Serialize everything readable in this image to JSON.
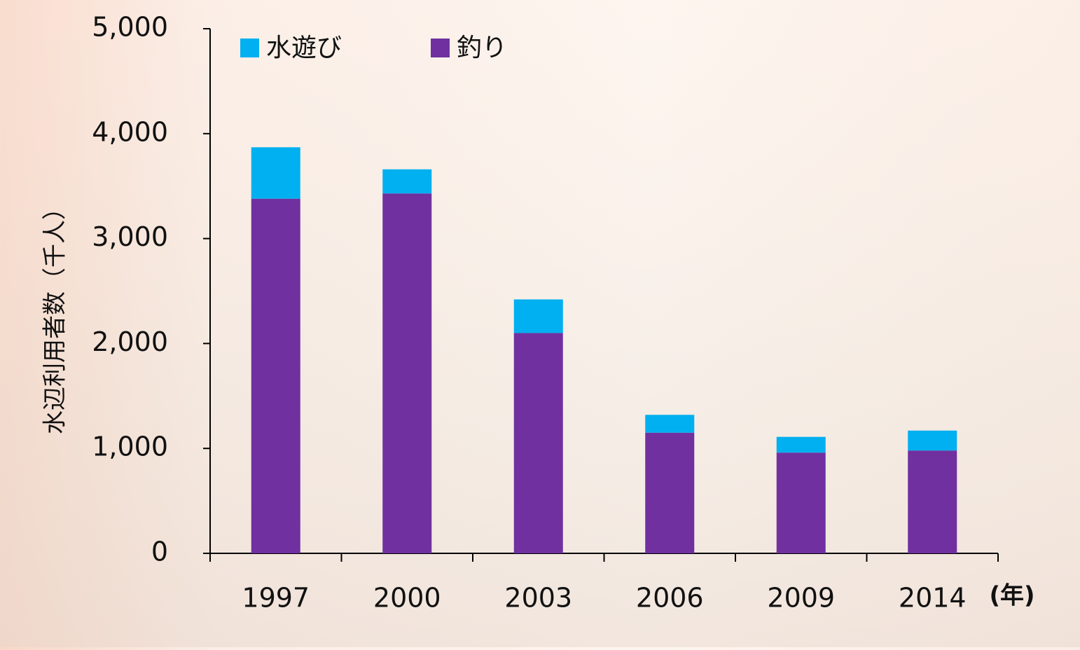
{
  "chart_data": {
    "type": "stacked-bar",
    "y_label": "水辺利用者数（千人）",
    "x_unit": "(年)",
    "categories": [
      "1997",
      "2000",
      "2003",
      "2006",
      "2009",
      "2014"
    ],
    "series": [
      {
        "name": "釣り",
        "color": "#7030a0",
        "values": [
          3380,
          3430,
          2100,
          1150,
          960,
          980
        ]
      },
      {
        "name": "水遊び",
        "color": "#00b0f0",
        "values": [
          490,
          230,
          320,
          170,
          150,
          190
        ]
      }
    ],
    "ylim": [
      0,
      5000
    ],
    "yticks": [
      0,
      {
        "value": 1000,
        "label": "1,000"
      },
      {
        "value": 2000,
        "label": "2,000"
      },
      {
        "value": 3000,
        "label": "3,000"
      },
      {
        "value": 4000,
        "label": "4,000"
      },
      {
        "value": 5000,
        "label": "5,000"
      }
    ]
  }
}
